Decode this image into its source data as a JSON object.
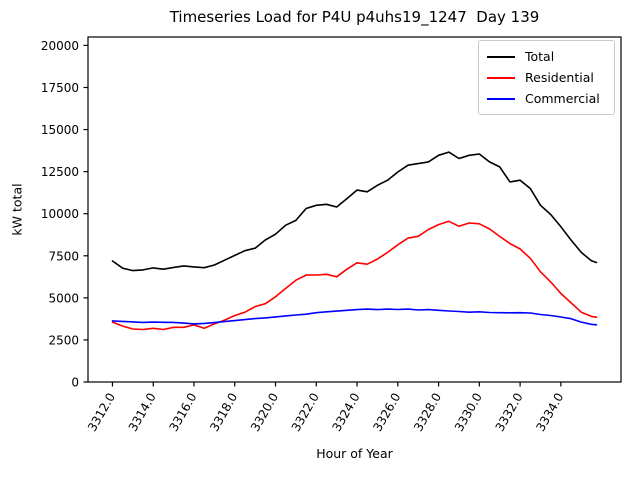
{
  "chart_data": {
    "type": "line",
    "title": "Timeseries Load for P4U p4uhs19_1247  Day 139",
    "xlabel": "Hour of Year",
    "ylabel": "kW total",
    "xlim": [
      3310.8,
      3336.95
    ],
    "ylim": [
      0,
      20500
    ],
    "grid": false,
    "legend_position": "upper right",
    "x_ticks": [
      3312,
      3314,
      3316,
      3318,
      3320,
      3322,
      3324,
      3326,
      3328,
      3330,
      3332,
      3334
    ],
    "x_tick_labels": [
      "3312.0",
      "3314.0",
      "3316.0",
      "3318.0",
      "3320.0",
      "3322.0",
      "3324.0",
      "3326.0",
      "3328.0",
      "3330.0",
      "3332.0",
      "3334.0"
    ],
    "x_tick_rotation_deg": 60,
    "y_ticks": [
      0,
      2500,
      5000,
      7500,
      10000,
      12500,
      15000,
      17500,
      20000
    ],
    "y_tick_labels": [
      "0",
      "2500",
      "5000",
      "7500",
      "10000",
      "12500",
      "15000",
      "17500",
      "20000"
    ],
    "x": [
      3312,
      3312.5,
      3313,
      3313.5,
      3314,
      3314.5,
      3315,
      3315.5,
      3316,
      3316.5,
      3317,
      3317.5,
      3318,
      3318.5,
      3319,
      3319.5,
      3320,
      3320.5,
      3321,
      3321.5,
      3322,
      3322.5,
      3323,
      3323.5,
      3324,
      3324.5,
      3325,
      3325.5,
      3326,
      3326.5,
      3327,
      3327.5,
      3328,
      3328.5,
      3329,
      3329.5,
      3330,
      3330.5,
      3331,
      3331.5,
      3332,
      3332.5,
      3333,
      3333.5,
      3334,
      3334.5,
      3335,
      3335.5,
      3335.75
    ],
    "series": [
      {
        "name": "Total",
        "color": "#000000",
        "values": [
          7190,
          6760,
          6620,
          6660,
          6780,
          6700,
          6810,
          6900,
          6840,
          6790,
          6950,
          7240,
          7520,
          7800,
          7950,
          8440,
          8780,
          9320,
          9600,
          10310,
          10500,
          10560,
          10400,
          10900,
          11400,
          11300,
          11690,
          11990,
          12480,
          12880,
          12980,
          13080,
          13470,
          13660,
          13280,
          13470,
          13550,
          13080,
          12780,
          11890,
          11990,
          11500,
          10500,
          9950,
          9220,
          8430,
          7700,
          7200,
          7100
        ]
      },
      {
        "name": "Residential",
        "color": "#ff0000",
        "values": [
          3560,
          3320,
          3150,
          3120,
          3190,
          3120,
          3250,
          3250,
          3390,
          3190,
          3450,
          3680,
          3950,
          4150,
          4480,
          4650,
          5060,
          5560,
          6050,
          6350,
          6360,
          6400,
          6250,
          6700,
          7080,
          7000,
          7300,
          7700,
          8150,
          8550,
          8660,
          9060,
          9350,
          9550,
          9250,
          9450,
          9400,
          9100,
          8650,
          8230,
          7900,
          7350,
          6550,
          5950,
          5260,
          4700,
          4150,
          3900,
          3850
        ]
      },
      {
        "name": "Commercial",
        "color": "#0000ff",
        "values": [
          3630,
          3600,
          3570,
          3540,
          3560,
          3550,
          3540,
          3500,
          3450,
          3480,
          3530,
          3590,
          3650,
          3710,
          3770,
          3810,
          3870,
          3930,
          3980,
          4030,
          4120,
          4170,
          4210,
          4260,
          4300,
          4330,
          4300,
          4330,
          4310,
          4330,
          4280,
          4300,
          4260,
          4220,
          4190,
          4150,
          4170,
          4130,
          4120,
          4110,
          4120,
          4100,
          4010,
          3950,
          3860,
          3760,
          3560,
          3430,
          3400
        ]
      }
    ]
  }
}
